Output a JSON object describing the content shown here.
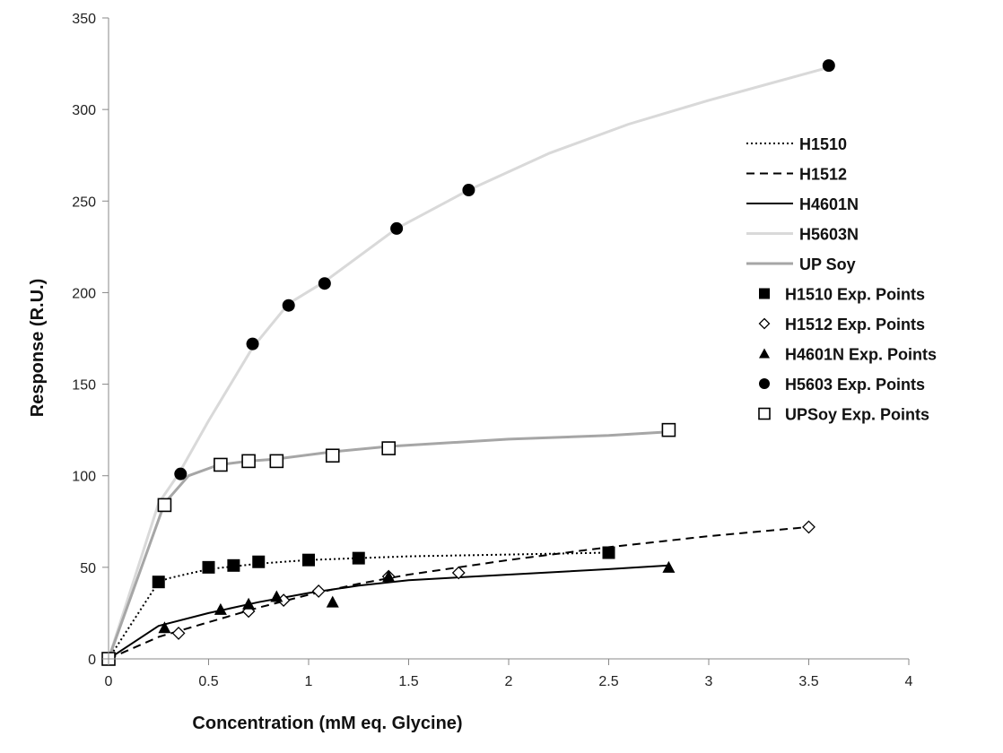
{
  "chart_data": {
    "type": "scatter",
    "title": "",
    "xlabel": "Concentration (mM eq. Glycine)",
    "ylabel": "Response (R.U.)",
    "xlim": [
      0,
      4
    ],
    "ylim": [
      0,
      350
    ],
    "xticks": [
      "0",
      "0.5",
      "1",
      "1.5",
      "2",
      "2.5",
      "3",
      "3.5",
      "4"
    ],
    "yticks": [
      "0",
      "50",
      "100",
      "150",
      "200",
      "250",
      "300",
      "350"
    ],
    "grid": false,
    "legend_position": "right",
    "series": [
      {
        "name": "H1510",
        "kind": "line",
        "style": "dotted",
        "color": "#000000",
        "points": [
          [
            0,
            0
          ],
          [
            0.25,
            42
          ],
          [
            0.3,
            44
          ],
          [
            0.5,
            49
          ],
          [
            0.75,
            52
          ],
          [
            1.0,
            54
          ],
          [
            1.25,
            55
          ],
          [
            1.5,
            56
          ],
          [
            2.0,
            57
          ],
          [
            2.5,
            58
          ]
        ]
      },
      {
        "name": "H1512",
        "kind": "line",
        "style": "dashed",
        "color": "#000000",
        "points": [
          [
            0,
            0
          ],
          [
            0.25,
            12
          ],
          [
            0.5,
            20
          ],
          [
            0.75,
            28
          ],
          [
            1.0,
            35
          ],
          [
            1.25,
            41
          ],
          [
            1.5,
            46
          ],
          [
            2.0,
            54
          ],
          [
            2.5,
            61
          ],
          [
            3.0,
            67
          ],
          [
            3.5,
            72
          ]
        ]
      },
      {
        "name": "H4601N",
        "kind": "line",
        "style": "solid",
        "color": "#000000",
        "points": [
          [
            0,
            0
          ],
          [
            0.25,
            18
          ],
          [
            0.5,
            25
          ],
          [
            0.75,
            31
          ],
          [
            1.0,
            36
          ],
          [
            1.25,
            40
          ],
          [
            1.5,
            43
          ],
          [
            2.0,
            46
          ],
          [
            2.5,
            49
          ],
          [
            2.8,
            51
          ]
        ]
      },
      {
        "name": "H5603N",
        "kind": "line",
        "style": "solid",
        "color": "#d9d9d9",
        "points": [
          [
            0,
            0
          ],
          [
            0.25,
            85
          ],
          [
            0.35,
            101
          ],
          [
            0.5,
            130
          ],
          [
            0.72,
            170
          ],
          [
            0.9,
            194
          ],
          [
            1.08,
            206
          ],
          [
            1.44,
            235
          ],
          [
            1.8,
            256
          ],
          [
            2.2,
            276
          ],
          [
            2.6,
            292
          ],
          [
            3.0,
            305
          ],
          [
            3.3,
            314
          ],
          [
            3.6,
            323
          ]
        ]
      },
      {
        "name": "UP Soy",
        "kind": "line",
        "style": "solid",
        "color": "#a6a6a6",
        "points": [
          [
            0,
            0
          ],
          [
            0.28,
            85
          ],
          [
            0.4,
            100
          ],
          [
            0.55,
            106
          ],
          [
            0.7,
            108
          ],
          [
            0.83,
            109
          ],
          [
            1.11,
            113
          ],
          [
            1.4,
            116
          ],
          [
            2.0,
            120
          ],
          [
            2.5,
            122
          ],
          [
            2.8,
            124
          ]
        ]
      },
      {
        "name": "H1510 Exp. Points",
        "kind": "marker",
        "marker": "square-filled",
        "color": "#000000",
        "points": [
          [
            0,
            0
          ],
          [
            0.25,
            42
          ],
          [
            0.5,
            50
          ],
          [
            0.625,
            51
          ],
          [
            0.75,
            53
          ],
          [
            1.0,
            54
          ],
          [
            1.25,
            55
          ],
          [
            2.5,
            58
          ]
        ]
      },
      {
        "name": "H1512 Exp. Points",
        "kind": "marker",
        "marker": "diamond-open",
        "color": "#000000",
        "points": [
          [
            0,
            0
          ],
          [
            0.35,
            14
          ],
          [
            0.7,
            26
          ],
          [
            0.875,
            32
          ],
          [
            1.05,
            37
          ],
          [
            1.4,
            45
          ],
          [
            1.75,
            47
          ],
          [
            3.5,
            72
          ]
        ]
      },
      {
        "name": "H4601N Exp. Points",
        "kind": "marker",
        "marker": "triangle-filled",
        "color": "#000000",
        "points": [
          [
            0,
            0
          ],
          [
            0.28,
            17
          ],
          [
            0.56,
            27
          ],
          [
            0.7,
            30
          ],
          [
            0.84,
            34
          ],
          [
            1.12,
            31
          ],
          [
            1.4,
            45
          ],
          [
            2.8,
            50
          ]
        ]
      },
      {
        "name": "H5603 Exp. Points",
        "kind": "marker",
        "marker": "circle-filled",
        "color": "#000000",
        "points": [
          [
            0,
            0
          ],
          [
            0.36,
            101
          ],
          [
            0.72,
            172
          ],
          [
            0.9,
            193
          ],
          [
            1.08,
            205
          ],
          [
            1.44,
            235
          ],
          [
            1.8,
            256
          ],
          [
            3.6,
            324
          ]
        ]
      },
      {
        "name": "UPSoy Exp. Points",
        "kind": "marker",
        "marker": "square-open",
        "color": "#000000",
        "points": [
          [
            0,
            0
          ],
          [
            0.28,
            84
          ],
          [
            0.56,
            106
          ],
          [
            0.7,
            108
          ],
          [
            0.84,
            108
          ],
          [
            1.12,
            111
          ],
          [
            1.4,
            115
          ],
          [
            2.8,
            125
          ]
        ]
      }
    ]
  }
}
